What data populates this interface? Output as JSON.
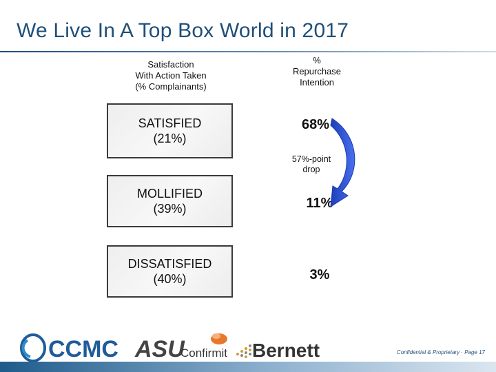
{
  "slide": {
    "title": "We Live In A Top Box World in 2017",
    "footer_note": "Confidential & Proprietary · Page 17"
  },
  "headers": {
    "left": [
      "Satisfaction",
      "With Action Taken",
      "(%  Complainants)"
    ],
    "right": [
      "%",
      "Repurchase",
      "Intention"
    ]
  },
  "rows": [
    {
      "label": "SATISFIED",
      "share": "(21%)",
      "repurchase": "68%"
    },
    {
      "label": "MOLLIFIED",
      "share": "(39%)",
      "repurchase": "11%"
    },
    {
      "label": "DISSATISFIED",
      "share": "(40%)",
      "repurchase": "3%"
    }
  ],
  "drop_annotation": [
    "57%-point",
    "drop"
  ],
  "logos": {
    "ccmc": "CCMC",
    "asu": "ASU",
    "confirmit": "Confirmit",
    "bernett": "Bernett"
  },
  "colors": {
    "title": "#1f4f7a",
    "arrow": "#2a4ed6",
    "footer_bar": "#1e5b8a"
  }
}
